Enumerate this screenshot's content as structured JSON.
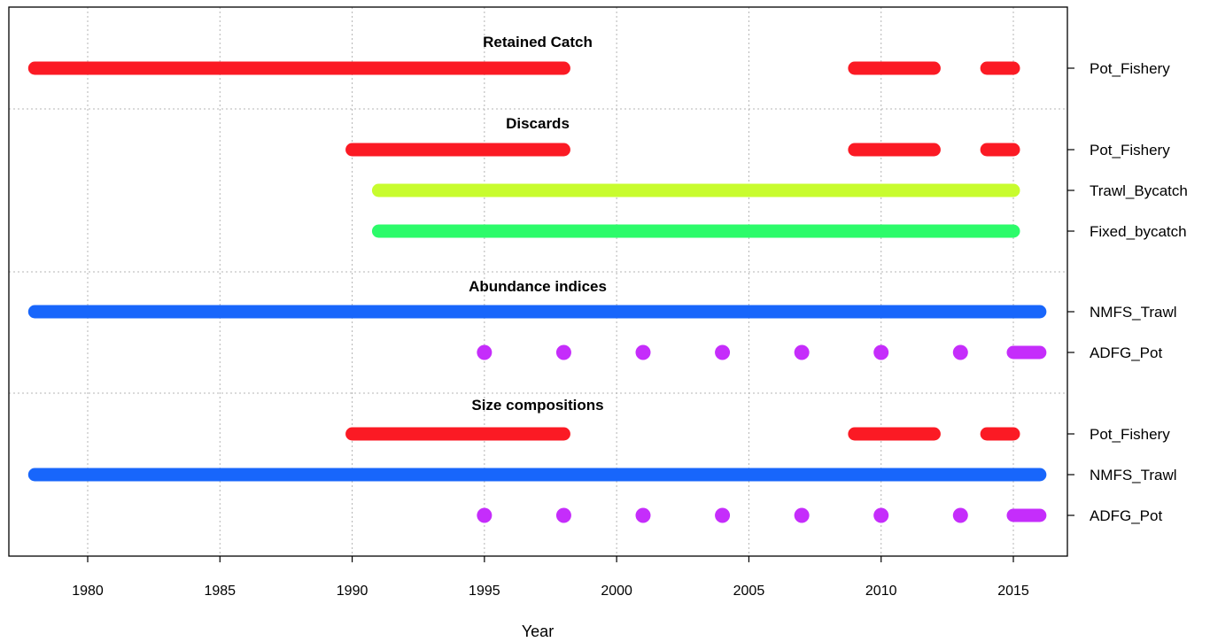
{
  "chart_data": {
    "type": "timeline",
    "xlabel": "Year",
    "xlim": [
      1977.6,
      2016.4
    ],
    "xticks": [
      1980,
      1985,
      1990,
      1995,
      2000,
      2005,
      2010,
      2015
    ],
    "grid": true,
    "colors": {
      "red": "#fb1a24",
      "lime": "#c8fc2e",
      "green": "#2cfb6a",
      "blue": "#1866fb",
      "purple": "#c52dfb"
    },
    "sections": [
      {
        "title": "Retained Catch",
        "rows": [
          {
            "label": "Pot_Fishery",
            "color": "red",
            "type": "ranges",
            "ranges": [
              [
                1978,
                1998
              ],
              [
                2009,
                2012
              ],
              [
                2014,
                2015
              ]
            ]
          }
        ]
      },
      {
        "title": "Discards",
        "rows": [
          {
            "label": "Pot_Fishery",
            "color": "red",
            "type": "ranges",
            "ranges": [
              [
                1990,
                1998
              ],
              [
                2009,
                2012
              ],
              [
                2014,
                2015
              ]
            ]
          },
          {
            "label": "Trawl_Bycatch",
            "color": "lime",
            "type": "ranges",
            "ranges": [
              [
                1991,
                2015
              ]
            ]
          },
          {
            "label": "Fixed_bycatch",
            "color": "green",
            "type": "ranges",
            "ranges": [
              [
                1991,
                2015
              ]
            ]
          }
        ]
      },
      {
        "title": "Abundance indices",
        "rows": [
          {
            "label": "NMFS_Trawl",
            "color": "blue",
            "type": "ranges",
            "ranges": [
              [
                1978,
                2016
              ]
            ]
          },
          {
            "label": "ADFG_Pot",
            "color": "purple",
            "type": "mixed",
            "points": [
              1995,
              1998,
              2001,
              2004,
              2007,
              2010,
              2013
            ],
            "ranges": [
              [
                2015,
                2016
              ]
            ]
          }
        ]
      },
      {
        "title": "Size compositions",
        "rows": [
          {
            "label": "Pot_Fishery",
            "color": "red",
            "type": "ranges",
            "ranges": [
              [
                1990,
                1998
              ],
              [
                2009,
                2012
              ],
              [
                2014,
                2015
              ]
            ]
          },
          {
            "label": "NMFS_Trawl",
            "color": "blue",
            "type": "ranges",
            "ranges": [
              [
                1978,
                2016
              ]
            ]
          },
          {
            "label": "ADFG_Pot",
            "color": "purple",
            "type": "mixed",
            "points": [
              1995,
              1998,
              2001,
              2004,
              2007,
              2010,
              2013
            ],
            "ranges": [
              [
                2015,
                2016
              ]
            ]
          }
        ]
      }
    ]
  }
}
